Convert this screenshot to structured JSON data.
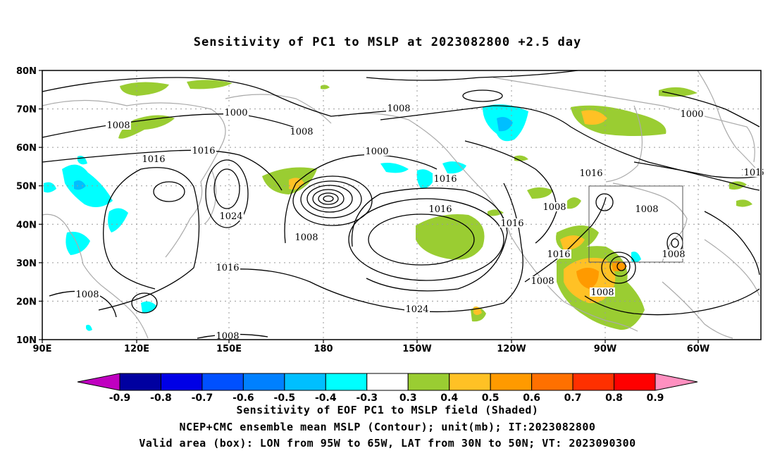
{
  "title": "Sensitivity of PC1 to MSLP at 2023082800 +2.5 day",
  "map": {
    "lat_labels": [
      "80N",
      "70N",
      "60N",
      "50N",
      "40N",
      "30N",
      "20N",
      "10N"
    ],
    "lon_labels": [
      "90E",
      "120E",
      "150E",
      "180",
      "150W",
      "120W",
      "90W",
      "60W"
    ],
    "contour_labels": [
      "1000",
      "1008",
      "1008",
      "1016",
      "1016",
      "1024",
      "1016",
      "1008",
      "1008",
      "1008",
      "1000",
      "1008",
      "1016",
      "1016",
      "1024",
      "1016",
      "1008",
      "1016",
      "1008",
      "1016",
      "1008",
      "1008",
      "1016",
      "1008",
      "1000",
      "101"
    ],
    "valid_box": {
      "lon_from": "95W",
      "lon_to": "65W",
      "lat_from": "30N",
      "lat_to": "50N"
    },
    "colors": {
      "contour": "#000000",
      "coastline": "#aaaaaa",
      "grid": "#999999",
      "pos_03_04": "#9acd32",
      "pos_04_05": "#ffc125",
      "pos_05_06": "#ff9a00",
      "neg_04_03": "#00ffff",
      "neg_05_04": "#00bfff"
    }
  },
  "colorbar": {
    "labels": [
      "-0.9",
      "-0.8",
      "-0.7",
      "-0.6",
      "-0.5",
      "-0.4",
      "-0.3",
      "0.3",
      "0.4",
      "0.5",
      "0.6",
      "0.7",
      "0.8",
      "0.9"
    ],
    "colors": [
      "#c000c0",
      "#0000a0",
      "#0000e6",
      "#0050ff",
      "#0080ff",
      "#00bfff",
      "#00ffff",
      "#ffffff",
      "#9acd32",
      "#ffc125",
      "#ff9a00",
      "#ff7000",
      "#ff3000",
      "#ff0000",
      "#ff90c0"
    ]
  },
  "captions": {
    "line1": "Sensitivity of EOF PC1 to MSLP field (Shaded)",
    "line2": "NCEP+CMC ensemble mean MSLP (Contour); unit(mb); IT:2023082800",
    "line3": "Valid area (box): LON from 95W to 65W, LAT from 30N to 50N; VT: 2023090300"
  }
}
